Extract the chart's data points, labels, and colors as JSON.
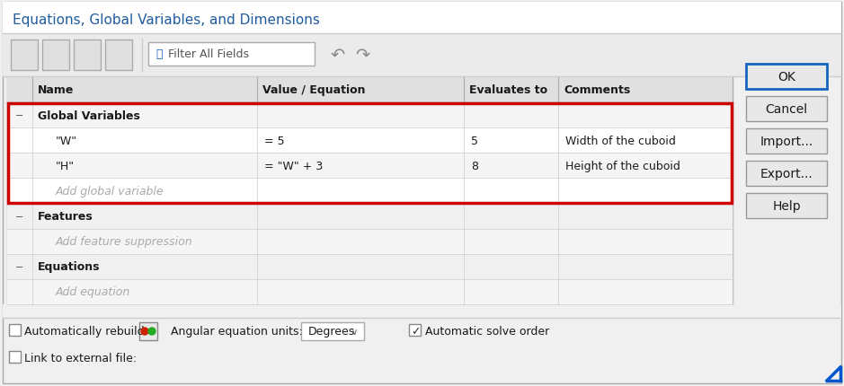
{
  "title": "Equations, Global Variables, and Dimensions",
  "title_color": "#1f5c9e",
  "bg_color": "#f0f0f0",
  "white": "#ffffff",
  "red_border": "#cc0000",
  "blue_border": "#1565c0",
  "dark_text": "#1a1a1a",
  "gray_text": "#aaaaaa",
  "bold_text": "#1a1a1a",
  "col_headers": [
    "Name",
    "Value / Equation",
    "Evaluates to",
    "Comments"
  ],
  "rows": [
    {
      "name": "Global Variables",
      "value": "",
      "evaluates": "",
      "comment": "",
      "bold": true,
      "indent": 0,
      "prefix": true,
      "bg": "#f5f5f5"
    },
    {
      "name": "\"W\"",
      "value": "= 5",
      "evaluates": "5",
      "comment": "Width of the cuboid",
      "bold": false,
      "indent": 1,
      "prefix": false,
      "bg": "#ffffff"
    },
    {
      "name": "\"H\"",
      "value": "= \"W\" + 3",
      "evaluates": "8",
      "comment": "Height of the cuboid",
      "bold": false,
      "indent": 1,
      "prefix": false,
      "bg": "#f5f5f5"
    },
    {
      "name": "Add global variable",
      "value": "",
      "evaluates": "",
      "comment": "",
      "bold": false,
      "indent": 1,
      "prefix": false,
      "bg": "#ffffff",
      "gray": true
    },
    {
      "name": "Features",
      "value": "",
      "evaluates": "",
      "comment": "",
      "bold": true,
      "indent": 0,
      "prefix": true,
      "bg": "#f0f0f0"
    },
    {
      "name": "Add feature suppression",
      "value": "",
      "evaluates": "",
      "comment": "",
      "bold": false,
      "indent": 1,
      "prefix": false,
      "bg": "#f5f5f5",
      "gray": true
    },
    {
      "name": "Equations",
      "value": "",
      "evaluates": "",
      "comment": "",
      "bold": true,
      "indent": 0,
      "prefix": true,
      "bg": "#f0f0f0"
    },
    {
      "name": "Add equation",
      "value": "",
      "evaluates": "",
      "comment": "",
      "bold": false,
      "indent": 1,
      "prefix": false,
      "bg": "#f5f5f5",
      "gray": true
    }
  ],
  "buttons": [
    {
      "label": "OK",
      "border": "#1565c0",
      "border_width": 2.0
    },
    {
      "label": "Cancel",
      "border": "#999999",
      "border_width": 1.0
    },
    {
      "label": "Import...",
      "border": "#999999",
      "border_width": 1.0
    },
    {
      "label": "Export...",
      "border": "#999999",
      "border_width": 1.0
    },
    {
      "label": "Help",
      "border": "#999999",
      "border_width": 1.0
    }
  ]
}
